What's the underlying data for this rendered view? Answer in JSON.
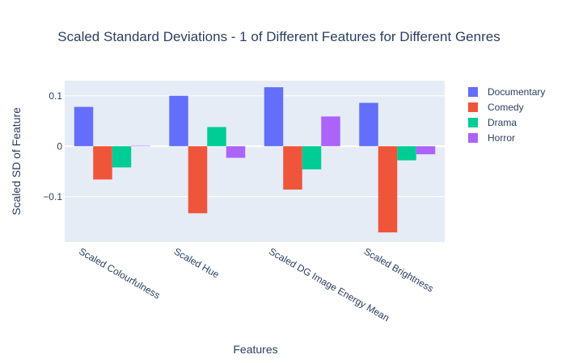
{
  "chart_data": {
    "type": "bar",
    "title": "Scaled Standard Deviations - 1 of Different Features for Different Genres",
    "xlabel": "Features",
    "ylabel": "Scaled SD of Feature",
    "categories": [
      "Scaled Colourfulness",
      "Scaled Hue",
      "Scaled DG Image Energy Mean",
      "Scaled Brightness"
    ],
    "series": [
      {
        "name": "Documentary",
        "color": "#636efa",
        "values": [
          0.078,
          0.1,
          0.117,
          0.086
        ]
      },
      {
        "name": "Comedy",
        "color": "#ef553b",
        "values": [
          -0.066,
          -0.133,
          -0.086,
          -0.171
        ]
      },
      {
        "name": "Drama",
        "color": "#00cc96",
        "values": [
          -0.042,
          0.038,
          -0.046,
          -0.028
        ]
      },
      {
        "name": "Horror",
        "color": "#ab63fa",
        "values": [
          0.001,
          -0.023,
          0.059,
          -0.016
        ]
      }
    ],
    "ylim": [
      -0.19,
      0.13
    ],
    "yticks": [
      0.1,
      0,
      -0.1
    ],
    "ytick_labels": [
      "0.1",
      "0",
      "−0.1"
    ],
    "grid": true,
    "legend_position": "top-right",
    "plot_background": "#e5ecf6"
  }
}
